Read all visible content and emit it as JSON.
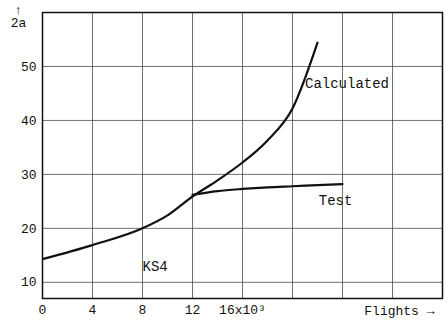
{
  "chart_data": {
    "type": "line",
    "x_label": "Flights →",
    "y_label": "↑\n2a",
    "xlim": [
      0,
      32
    ],
    "ylim": [
      7,
      60
    ],
    "xticks": [
      0,
      4,
      8,
      12,
      {
        "value": 16,
        "label": "16x10³"
      },
      {
        "value": 20,
        "label": null
      },
      {
        "value": 24,
        "label": null
      },
      {
        "value": 28,
        "label": null
      }
    ],
    "yticks": [
      10,
      20,
      30,
      40,
      50
    ],
    "grid": true,
    "series": [
      {
        "name": "Calculated",
        "color": "#111111",
        "x": [
          0,
          4,
          8,
          10,
          12,
          14,
          16,
          18,
          20,
          22
        ],
        "values": [
          14.3,
          16.9,
          20.0,
          22.4,
          25.9,
          28.9,
          32.2,
          36.3,
          42.2,
          54.4
        ]
      },
      {
        "name": "Test",
        "color": "#111111",
        "x": [
          12,
          14,
          16,
          18,
          20,
          22,
          24
        ],
        "values": [
          26.2,
          26.9,
          27.3,
          27.6,
          27.8,
          28.0,
          28.2
        ]
      }
    ],
    "annotations": [
      {
        "text": "Calculated",
        "x": 21,
        "y": 46.9
      },
      {
        "text": "Test",
        "x": 22.1,
        "y": 25.2
      },
      {
        "text": "KS4",
        "x": 8,
        "y": 13
      }
    ]
  }
}
